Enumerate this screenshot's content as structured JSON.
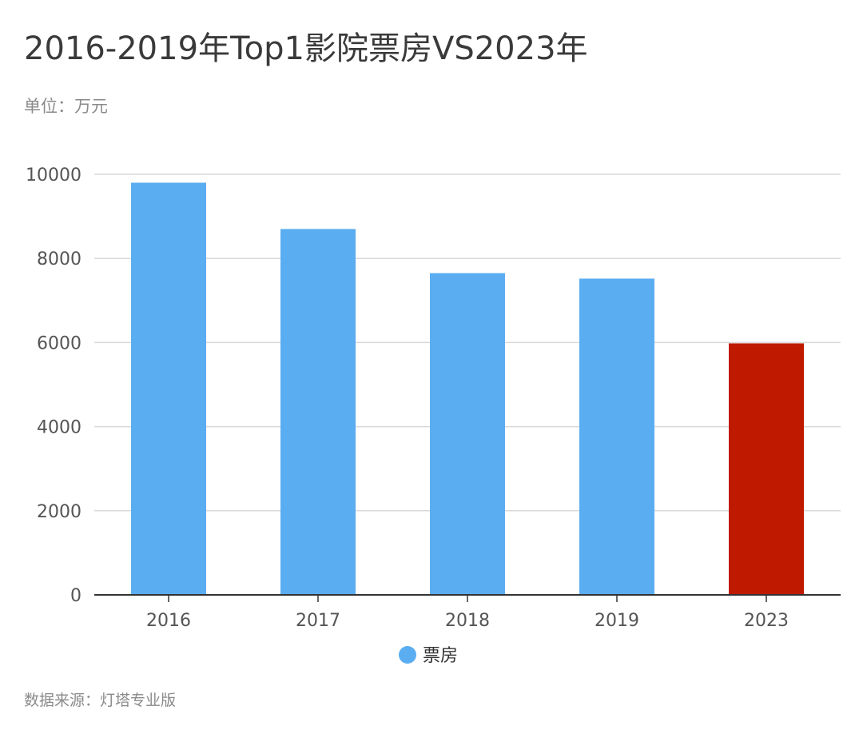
{
  "header": {
    "title": "2016-2019年Top1影院票房VS2023年",
    "unit": "单位：万元"
  },
  "footer": {
    "source": "数据来源：灯塔专业版"
  },
  "colors": {
    "bar": "#5badf1",
    "highlight": "#bf1a00",
    "grid": "#d9d9d9",
    "axis": "#333333",
    "tick_text": "#555555"
  },
  "chart_data": {
    "type": "bar",
    "categories": [
      "2016",
      "2017",
      "2018",
      "2019",
      "2023"
    ],
    "series": [
      {
        "name": "票房",
        "values": [
          9800,
          8700,
          7650,
          7520,
          5980
        ]
      }
    ],
    "highlight_category": "2023",
    "ylim": [
      0,
      10000
    ],
    "yticks": [
      0,
      2000,
      4000,
      6000,
      8000,
      10000
    ],
    "grid": true,
    "legend": "bottom-center"
  }
}
